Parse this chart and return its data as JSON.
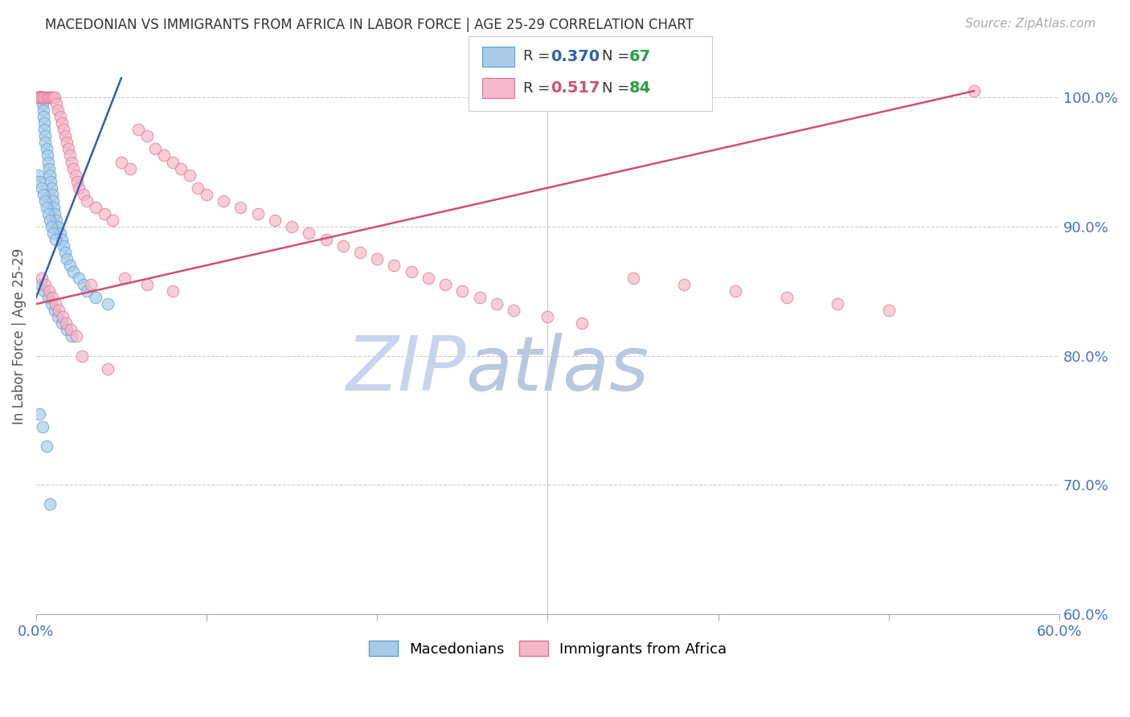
{
  "title": "MACEDONIAN VS IMMIGRANTS FROM AFRICA IN LABOR FORCE | AGE 25-29 CORRELATION CHART",
  "source": "Source: ZipAtlas.com",
  "ylabel": "In Labor Force | Age 25-29",
  "xmin": 0.0,
  "xmax": 60.0,
  "ymin": 60.0,
  "ymax": 103.0,
  "blue_R": 0.37,
  "blue_N": 67,
  "pink_R": 0.517,
  "pink_N": 84,
  "blue_color": "#a8cce8",
  "pink_color": "#f4b8c8",
  "blue_edge_color": "#5b9bd5",
  "pink_edge_color": "#e07090",
  "blue_line_color": "#3060b0",
  "pink_line_color": "#d05070",
  "legend_R_color": "#3060b0",
  "legend_N_color": "#28a045",
  "watermark_zip_color": "#c8d8f0",
  "watermark_atlas_color": "#c0d0e8",
  "blue_trend_x0": 0.0,
  "blue_trend_y0": 84.5,
  "blue_trend_x1": 5.0,
  "blue_trend_y1": 101.5,
  "pink_trend_x0": 0.0,
  "pink_trend_y0": 84.0,
  "pink_trend_x1": 55.0,
  "pink_trend_y1": 100.5,
  "blue_scatter_x": [
    0.1,
    0.15,
    0.18,
    0.2,
    0.22,
    0.25,
    0.28,
    0.3,
    0.32,
    0.35,
    0.38,
    0.4,
    0.42,
    0.45,
    0.48,
    0.5,
    0.52,
    0.55,
    0.6,
    0.65,
    0.7,
    0.75,
    0.8,
    0.85,
    0.9,
    0.95,
    1.0,
    1.05,
    1.1,
    1.2,
    1.3,
    1.4,
    1.5,
    1.6,
    1.7,
    1.8,
    2.0,
    2.2,
    2.5,
    2.8,
    3.0,
    3.5,
    4.2,
    0.12,
    0.22,
    0.32,
    0.42,
    0.52,
    0.62,
    0.72,
    0.82,
    0.92,
    1.02,
    1.12,
    0.3,
    0.5,
    0.7,
    0.9,
    1.1,
    1.3,
    1.5,
    1.8,
    2.1,
    0.2,
    0.4,
    0.6,
    0.8
  ],
  "blue_scatter_y": [
    100.0,
    100.0,
    100.0,
    100.0,
    100.0,
    100.0,
    100.0,
    100.0,
    100.0,
    100.0,
    100.0,
    99.5,
    99.0,
    98.5,
    98.0,
    97.5,
    97.0,
    96.5,
    96.0,
    95.5,
    95.0,
    94.5,
    94.0,
    93.5,
    93.0,
    92.5,
    92.0,
    91.5,
    91.0,
    90.5,
    90.0,
    89.5,
    89.0,
    88.5,
    88.0,
    87.5,
    87.0,
    86.5,
    86.0,
    85.5,
    85.0,
    84.5,
    84.0,
    94.0,
    93.5,
    93.0,
    92.5,
    92.0,
    91.5,
    91.0,
    90.5,
    90.0,
    89.5,
    89.0,
    85.5,
    85.0,
    84.5,
    84.0,
    83.5,
    83.0,
    82.5,
    82.0,
    81.5,
    75.5,
    74.5,
    73.0,
    68.5
  ],
  "pink_scatter_x": [
    0.1,
    0.2,
    0.3,
    0.4,
    0.5,
    0.6,
    0.7,
    0.8,
    0.9,
    1.0,
    1.1,
    1.2,
    1.3,
    1.4,
    1.5,
    1.6,
    1.7,
    1.8,
    1.9,
    2.0,
    2.1,
    2.2,
    2.3,
    2.4,
    2.5,
    2.8,
    3.0,
    3.5,
    4.0,
    4.5,
    5.0,
    5.5,
    6.0,
    6.5,
    7.0,
    7.5,
    8.0,
    8.5,
    9.0,
    9.5,
    10.0,
    11.0,
    12.0,
    13.0,
    14.0,
    15.0,
    16.0,
    17.0,
    18.0,
    19.0,
    20.0,
    21.0,
    22.0,
    23.0,
    24.0,
    25.0,
    26.0,
    27.0,
    28.0,
    30.0,
    32.0,
    35.0,
    38.0,
    41.0,
    44.0,
    47.0,
    50.0,
    55.0,
    0.35,
    0.55,
    0.75,
    0.95,
    1.15,
    1.35,
    1.55,
    1.75,
    2.05,
    2.35,
    2.7,
    3.2,
    4.2,
    5.2,
    6.5,
    8.0
  ],
  "pink_scatter_y": [
    100.0,
    100.0,
    100.0,
    100.0,
    100.0,
    100.0,
    100.0,
    100.0,
    100.0,
    100.0,
    100.0,
    99.5,
    99.0,
    98.5,
    98.0,
    97.5,
    97.0,
    96.5,
    96.0,
    95.5,
    95.0,
    94.5,
    94.0,
    93.5,
    93.0,
    92.5,
    92.0,
    91.5,
    91.0,
    90.5,
    95.0,
    94.5,
    97.5,
    97.0,
    96.0,
    95.5,
    95.0,
    94.5,
    94.0,
    93.0,
    92.5,
    92.0,
    91.5,
    91.0,
    90.5,
    90.0,
    89.5,
    89.0,
    88.5,
    88.0,
    87.5,
    87.0,
    86.5,
    86.0,
    85.5,
    85.0,
    84.5,
    84.0,
    83.5,
    83.0,
    82.5,
    86.0,
    85.5,
    85.0,
    84.5,
    84.0,
    83.5,
    100.5,
    86.0,
    85.5,
    85.0,
    84.5,
    84.0,
    83.5,
    83.0,
    82.5,
    82.0,
    81.5,
    80.0,
    85.5,
    79.0,
    86.0,
    85.5,
    85.0
  ]
}
